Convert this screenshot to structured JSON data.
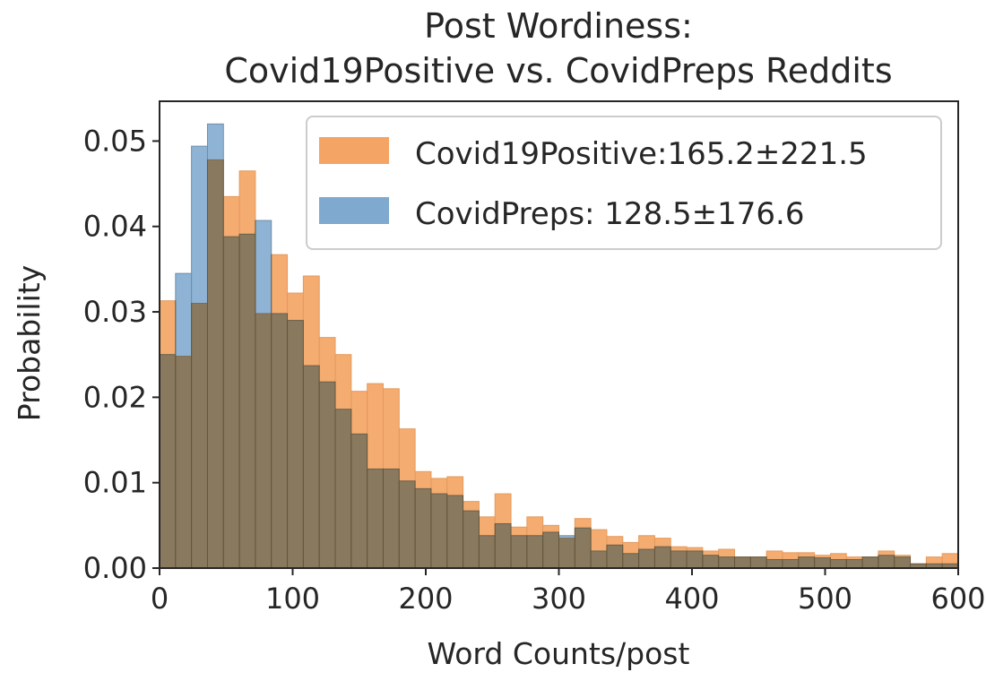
{
  "chart_data": {
    "type": "bar",
    "title": "Post Wordiness:",
    "subtitle": "Covid19Positive vs. CovidPreps Reddits",
    "xlabel": "Word Counts/post",
    "ylabel": "Probability",
    "xlim": [
      0,
      600
    ],
    "ylim": [
      0,
      0.05
    ],
    "x_ticks": [
      "0",
      "100",
      "200",
      "300",
      "400",
      "500",
      "600"
    ],
    "y_ticks": [
      "0.00",
      "0.01",
      "0.02",
      "0.03",
      "0.04",
      "0.05"
    ],
    "bin_width": 12,
    "bin_edges_start": [
      0,
      12,
      24,
      36,
      48,
      60,
      72,
      84,
      96,
      108,
      120,
      132,
      144,
      156,
      168,
      180,
      192,
      204,
      216,
      228,
      240,
      252,
      264,
      276,
      288,
      300,
      312,
      324,
      336,
      348,
      360,
      372,
      384,
      396,
      408,
      420,
      432,
      444,
      456,
      468,
      480,
      492,
      504,
      516,
      528,
      540,
      552,
      564,
      576,
      588
    ],
    "grid": false,
    "legend_position": "top-right",
    "series": [
      {
        "name": "Covid19Positive:165.2±221.5",
        "color": "#f4a565",
        "values": [
          0.0313,
          0.0248,
          0.031,
          0.0478,
          0.0435,
          0.0465,
          0.0298,
          0.0367,
          0.0322,
          0.0342,
          0.027,
          0.025,
          0.0207,
          0.0216,
          0.021,
          0.0163,
          0.0113,
          0.0105,
          0.0107,
          0.0078,
          0.006,
          0.0087,
          0.0048,
          0.006,
          0.005,
          0.0035,
          0.0058,
          0.0045,
          0.0037,
          0.003,
          0.0038,
          0.0035,
          0.0025,
          0.0024,
          0.002,
          0.0022,
          0.0013,
          0.0013,
          0.002,
          0.0018,
          0.0018,
          0.0015,
          0.0017,
          0.0013,
          0.0013,
          0.002,
          0.0015,
          0.0005,
          0.0013,
          0.0017
        ]
      },
      {
        "name": "CovidPreps: 128.5±176.6",
        "color": "#7fa9cf",
        "values": [
          0.025,
          0.0345,
          0.0494,
          0.052,
          0.0388,
          0.0391,
          0.0407,
          0.0298,
          0.029,
          0.0237,
          0.0218,
          0.0186,
          0.0157,
          0.0116,
          0.0116,
          0.0102,
          0.0093,
          0.0087,
          0.0085,
          0.0067,
          0.0038,
          0.0052,
          0.0038,
          0.0038,
          0.0042,
          0.0038,
          0.0047,
          0.002,
          0.0027,
          0.0017,
          0.0022,
          0.0025,
          0.002,
          0.002,
          0.0015,
          0.0013,
          0.0013,
          0.0013,
          0.001,
          0.001,
          0.0013,
          0.0012,
          0.001,
          0.001,
          0.0013,
          0.0015,
          0.0013,
          0.0005,
          0.0005,
          0.0005
        ]
      }
    ]
  }
}
